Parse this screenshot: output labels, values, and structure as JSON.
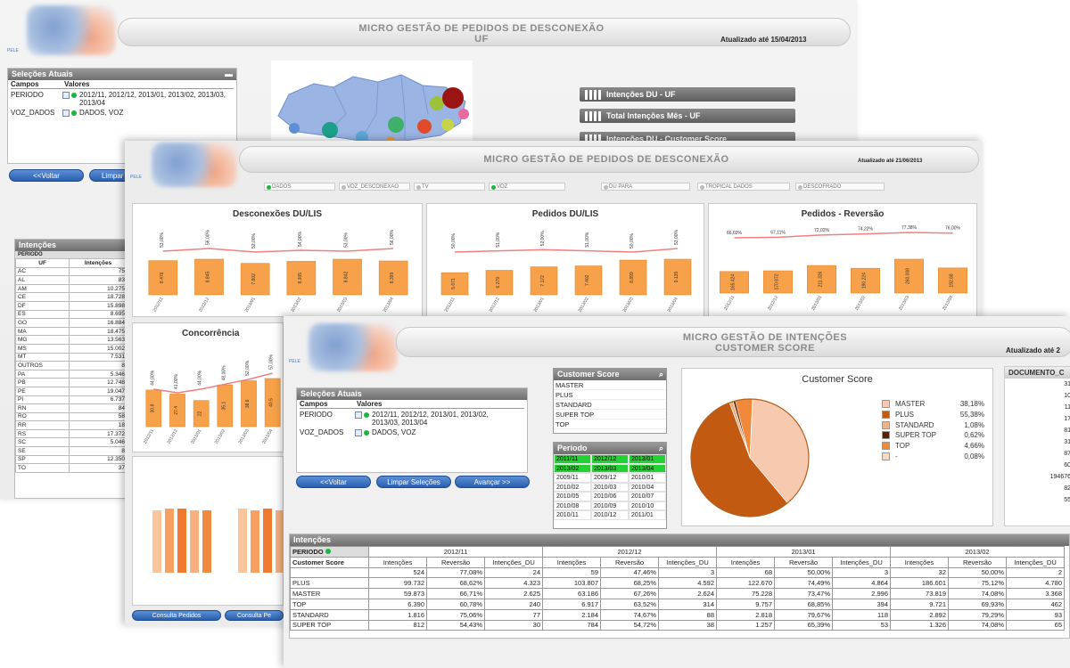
{
  "window1": {
    "title_line1": "MICRO GESTÃO DE PEDIDOS DE DESCONEXÃO",
    "title_line2": "UF",
    "updated": "Atualizado até 15/04/2013",
    "logo_tag": "PELE",
    "selections_title": "Seleções Atuais",
    "col_campos": "Campos",
    "col_valores": "Valores",
    "sel_rows": [
      {
        "field": "PERIODO",
        "value": "2012/11, 2012/12, 2013/01, 2013/02, 2013/03, 2013/04"
      },
      {
        "field": "VOZ_DADOS",
        "value": "DADOS, VOZ"
      }
    ],
    "btn_voltar": "<<Voltar",
    "btn_limpar": "Limpar S",
    "menu": [
      "Intenções DU - UF",
      "Total Intenções Mês - UF",
      "Intenções DU - Customer Score"
    ],
    "intencoes_title": "Intenções",
    "intencoes_filter": "PERIODO",
    "intencoes_headers": [
      "UF",
      "Intenções"
    ],
    "intencoes_rows": [
      [
        "AC",
        "75"
      ],
      [
        "AL",
        "83"
      ],
      [
        "AM",
        "10.275"
      ],
      [
        "CE",
        "18.728"
      ],
      [
        "DF",
        "15.898"
      ],
      [
        "ES",
        "8.695"
      ],
      [
        "GO",
        "16.884"
      ],
      [
        "MA",
        "18.475"
      ],
      [
        "MG",
        "13.563"
      ],
      [
        "MS",
        "15.002"
      ],
      [
        "MT",
        "7.531"
      ],
      [
        "OUTROS",
        "8"
      ],
      [
        "PA",
        "5.346"
      ],
      [
        "PB",
        "12.748"
      ],
      [
        "PE",
        "19.047"
      ],
      [
        "PI",
        "6.737"
      ],
      [
        "RN",
        "84"
      ],
      [
        "RO",
        "58"
      ],
      [
        "RR",
        "18"
      ],
      [
        "RS",
        "17.372"
      ],
      [
        "SC",
        "5.046"
      ],
      [
        "SE",
        "8"
      ],
      [
        "SP",
        "12.350"
      ],
      [
        "TO",
        "37"
      ]
    ]
  },
  "window2": {
    "title": "MICRO GESTÃO DE PEDIDOS DE DESCONEXÃO",
    "updated": "Atualizado até 21/06/2013",
    "logo_tag": "PELE",
    "filters": [
      "DADOS",
      "VOZ_DESCONEXAO",
      "TV",
      "VOZ",
      "DU PARA",
      "TROPICAL DADOS",
      "DESCOFRADO"
    ],
    "chart_titles": [
      "Desconexões DU/LIS",
      "Pedidos DU/LIS",
      "Pedidos - Reversão",
      "Concorrência"
    ],
    "buttons": [
      "Consulta Pedidos",
      "Consulta Pe"
    ]
  },
  "window3": {
    "title_line1": "MICRO GESTÃO DE INTENÇÕES",
    "title_line2": "CUSTOMER SCORE",
    "updated": "Atualizado até 2",
    "logo_tag": "PELE",
    "selections_title": "Seleções Atuais",
    "col_campos": "Campos",
    "col_valores": "Valores",
    "sel_rows": [
      {
        "field": "PERIODO",
        "value": "2012/11, 2012/12, 2013/01, 2013/02, 2013/03, 2013/04"
      },
      {
        "field": "VOZ_DADOS",
        "value": "DADOS, VOZ"
      }
    ],
    "btn_voltar": "<<Voltar",
    "btn_limpar": "Limpar Seleções",
    "btn_avancar": "Avançar >>",
    "cs_list_title": "Customer Score",
    "cs_list": [
      "MASTER",
      "PLUS",
      "STANDARD",
      "SUPER TOP",
      "TOP"
    ],
    "periodo_title": "Período",
    "periodo": [
      [
        "2011/11",
        "2012/12",
        "2013/01"
      ],
      [
        "2013/02",
        "2013/03",
        "2013/04"
      ],
      [
        "2009/11",
        "2009/12",
        "2010/01"
      ],
      [
        "2010/02",
        "2010/03",
        "2010/04"
      ],
      [
        "2010/05",
        "2010/06",
        "2010/07"
      ],
      [
        "2010/08",
        "2010/09",
        "2010/10"
      ],
      [
        "2010/11",
        "2010/12",
        "2011/01"
      ]
    ],
    "periodo_selected_rows": 2,
    "pie_title": "Customer Score",
    "documento_title": "DOCUMENTO_C",
    "documento_values": [
      "31",
      "10",
      "11",
      "17",
      "81",
      "31",
      "87",
      "60",
      "194676",
      "82",
      "55"
    ],
    "int_title": "Intenções",
    "int_filter": "PERIODO",
    "periods": [
      "2012/11",
      "2012/12",
      "2013/01",
      "2013/02"
    ],
    "int_row_header": "Customer Score",
    "int_sub": [
      "Intenções",
      "Reversão",
      "Intenções_DU"
    ],
    "int_totals": [
      [
        "524",
        "77,08%",
        "24"
      ],
      [
        "59",
        "47,46%",
        "3"
      ],
      [
        "68",
        "50,00%",
        "3"
      ],
      [
        "32",
        "50,00%",
        "2"
      ]
    ],
    "int_rows": [
      {
        "name": "PLUS",
        "vals": [
          [
            "99.732",
            "68,62%",
            "4.323"
          ],
          [
            "103.807",
            "68,25%",
            "4.592"
          ],
          [
            "122.670",
            "74,49%",
            "4.864"
          ],
          [
            "186.601",
            "75,12%",
            "4.780"
          ]
        ]
      },
      {
        "name": "MASTER",
        "vals": [
          [
            "59.873",
            "66,71%",
            "2.625"
          ],
          [
            "63.186",
            "67,26%",
            "2.624"
          ],
          [
            "75.228",
            "73,47%",
            "2.996"
          ],
          [
            "73.819",
            "74,08%",
            "3.368"
          ]
        ]
      },
      {
        "name": "TOP",
        "vals": [
          [
            "6.390",
            "60,78%",
            "240"
          ],
          [
            "6.917",
            "63,52%",
            "314"
          ],
          [
            "9.757",
            "68,85%",
            "394"
          ],
          [
            "9.721",
            "69,93%",
            "462"
          ]
        ]
      },
      {
        "name": "STANDARD",
        "vals": [
          [
            "1.816",
            "75,06%",
            "77"
          ],
          [
            "2.184",
            "74,67%",
            "88"
          ],
          [
            "2.818",
            "79,67%",
            "118"
          ],
          [
            "2.892",
            "79,29%",
            "93"
          ]
        ]
      },
      {
        "name": "SUPER TOP",
        "vals": [
          [
            "812",
            "54,43%",
            "30"
          ],
          [
            "784",
            "54,72%",
            "38"
          ],
          [
            "1.257",
            "65,39%",
            "53"
          ],
          [
            "1.326",
            "74,08%",
            "65"
          ]
        ]
      }
    ]
  },
  "chart_data": [
    {
      "type": "pie",
      "title": "Customer Score",
      "categories": [
        "MASTER",
        "PLUS",
        "STANDARD",
        "SUPER TOP",
        "TOP",
        "-"
      ],
      "values": [
        38.18,
        55.38,
        1.08,
        0.62,
        4.66,
        0.08
      ],
      "labels": [
        "38,18%",
        "55,38%",
        "1,08%",
        "0,62%",
        "4,66%",
        "0,08%"
      ],
      "colors": [
        "#f7c9ae",
        "#c35a12",
        "#e8b48c",
        "#5a1e00",
        "#f08a3a",
        "#f5d8c6"
      ],
      "legend": "right"
    },
    {
      "type": "bar",
      "title": "Desconexões DU/LIS",
      "categories": [
        "2012/11",
        "2012/12",
        "2013/01",
        "2013/02",
        "2013/03",
        "2013/04"
      ],
      "values": [
        8.476,
        8.845,
        7.802,
        8.305,
        8.842,
        8.399
      ],
      "line_values": [
        0.53,
        0.56,
        0.52,
        0.54,
        0.53,
        0.56
      ]
    },
    {
      "type": "bar",
      "title": "Pedidos DU/LIS",
      "categories": [
        "2012/11",
        "2012/12",
        "2013/01",
        "2013/02",
        "2013/03",
        "2013/04"
      ],
      "values": [
        5.671,
        6.279,
        7.172,
        7.402,
        8.899,
        9.135
      ],
      "line_values": [
        0.5,
        0.51,
        0.52,
        0.51,
        0.5,
        0.53
      ]
    },
    {
      "type": "bar",
      "title": "Pedidos - Reversão",
      "categories": [
        "2012/11",
        "2012/12",
        "2013/01",
        "2013/02",
        "2013/03",
        "2013/04"
      ],
      "values": [
        165.424,
        170.872,
        211.326,
        190.224,
        260.008,
        192.68
      ],
      "line_values": [
        66.02,
        67.11,
        72.02,
        74.22,
        77.38,
        76.0
      ],
      "line_labels": [
        "66,02%",
        "67,11%",
        "72,02%",
        "74,22%",
        "77,38%",
        "76,00%"
      ]
    },
    {
      "type": "bar",
      "title": "Concorrência",
      "categories": [
        "2012/11",
        "2012/12",
        "2013/01",
        "2013/02",
        "2013/03",
        "2013/04"
      ],
      "values": [
        30.8,
        27.4,
        22.0,
        35.1,
        38.6,
        40.5
      ],
      "line_values": [
        0.44,
        0.41,
        0.44,
        0.48,
        0.52,
        0.57
      ]
    }
  ]
}
